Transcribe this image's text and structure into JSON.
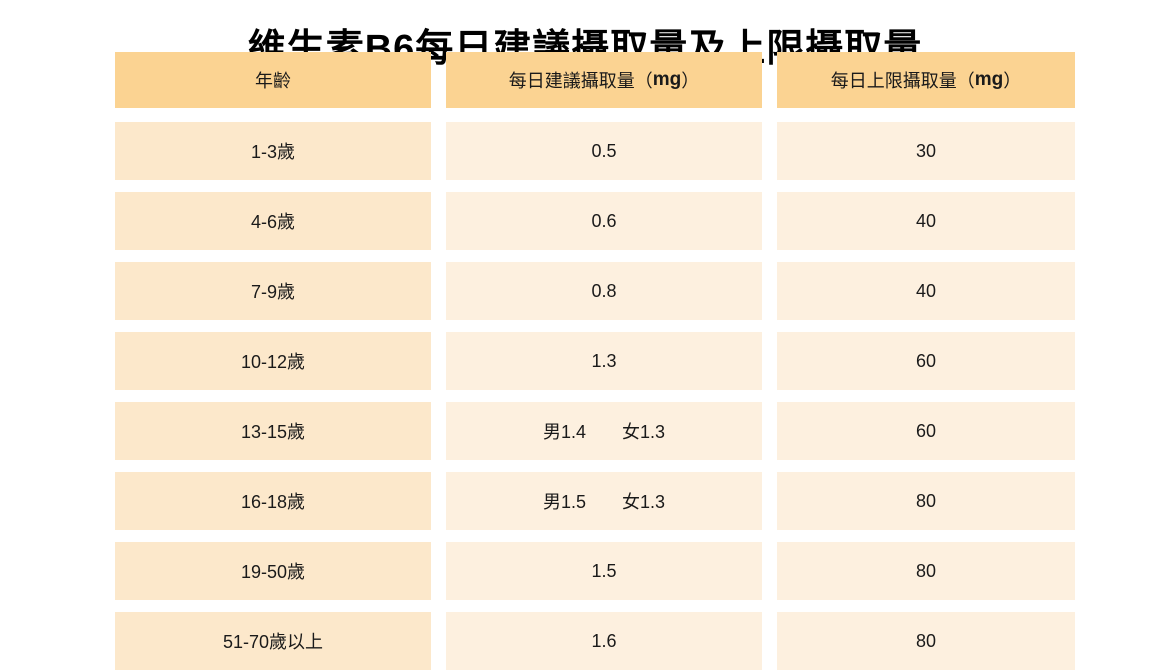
{
  "page_title": "維生素B6每日建議攝取量及上限攝取量",
  "colors": {
    "page_bg": "#ffffff",
    "header_bg": "#fbd392",
    "age_cell_bg": "#fce8cb",
    "value_cell_bg": "#fdf0df",
    "text": "#1a1a1a",
    "title_text": "#000000"
  },
  "header_display": [
    {
      "prefix": "年齡",
      "unit": "",
      "suffix": ""
    },
    {
      "prefix": "每日建議攝取量（",
      "unit": "mg",
      "suffix": "）"
    },
    {
      "prefix": "每日上限攝取量（",
      "unit": "mg",
      "suffix": "）"
    }
  ],
  "chart_data": {
    "type": "table",
    "title": "維生素B6每日建議攝取量及上限攝取量",
    "columns": [
      "年齡",
      "每日建議攝取量（mg）",
      "每日上限攝取量（mg）"
    ],
    "rows": [
      {
        "age": "1-3歲",
        "recommended": "0.5",
        "upper_limit": "30"
      },
      {
        "age": "4-6歲",
        "recommended": "0.6",
        "upper_limit": "40"
      },
      {
        "age": "7-9歲",
        "recommended": "0.8",
        "upper_limit": "40"
      },
      {
        "age": "10-12歲",
        "recommended": "1.3",
        "upper_limit": "60"
      },
      {
        "age": "13-15歲",
        "recommended": "男1.4　　女1.3",
        "upper_limit": "60"
      },
      {
        "age": "16-18歲",
        "recommended": "男1.5　　女1.3",
        "upper_limit": "80"
      },
      {
        "age": "19-50歲",
        "recommended": "1.5",
        "upper_limit": "80"
      },
      {
        "age": "51-70歲以上",
        "recommended": "1.6",
        "upper_limit": "80"
      }
    ]
  }
}
